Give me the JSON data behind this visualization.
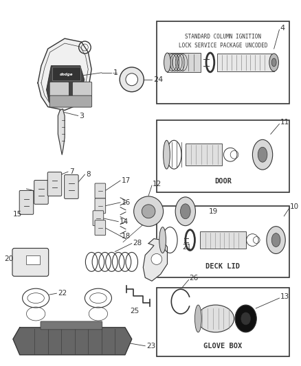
{
  "bg_color": "#ffffff",
  "lc": "#333333",
  "box_labels": {
    "ignition": "STANDARD COLUMN IGNITION\nLOCK SERVICE PACKAGE UNCODED",
    "door": "DOOR",
    "deck_lid": "DECK LID",
    "glove_box": "GLOVE BOX"
  }
}
